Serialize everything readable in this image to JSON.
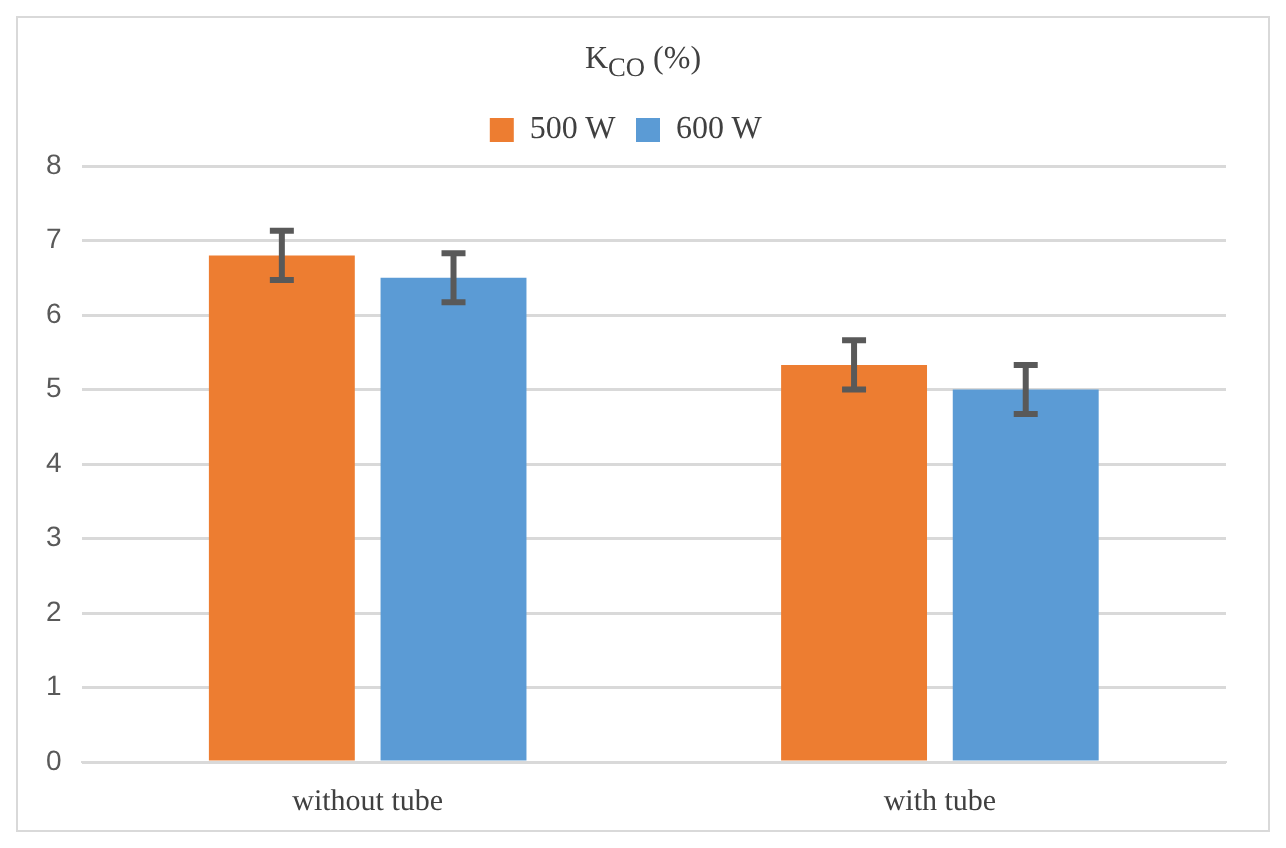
{
  "chart_data": {
    "type": "bar",
    "title": "K$_{CO}$ (%)",
    "categories": [
      "without tube",
      "with tube"
    ],
    "series": [
      {
        "name": "500 W",
        "color": "#ed7d31",
        "values": [
          6.8,
          5.33
        ],
        "errors": [
          0.33,
          0.33
        ]
      },
      {
        "name": "600 W",
        "color": "#5b9bd5",
        "values": [
          6.5,
          5.0
        ],
        "errors": [
          0.33,
          0.33
        ]
      }
    ],
    "ylim": [
      0,
      8
    ],
    "yticks": [
      0,
      1,
      2,
      3,
      4,
      5,
      6,
      7,
      8
    ],
    "grid": "y",
    "legend": "top"
  }
}
